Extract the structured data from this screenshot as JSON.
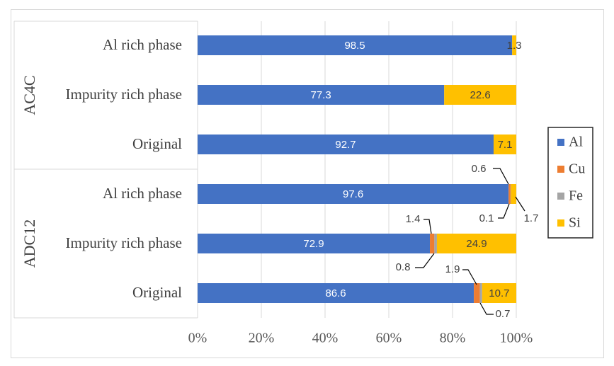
{
  "chart_data": {
    "type": "bar",
    "orientation": "horizontal",
    "stacked": "percent",
    "groups": [
      {
        "name": "AC4C",
        "categories": [
          "Al rich phase",
          "Impurity rich phase",
          "Original"
        ]
      },
      {
        "name": "ADC12",
        "categories": [
          "Al rich phase",
          "Impurity rich phase",
          "Original"
        ]
      }
    ],
    "categories": [
      "Al rich phase",
      "Impurity rich phase",
      "Original",
      "Al rich phase",
      "Impurity rich phase",
      "Original"
    ],
    "series": [
      {
        "name": "Al",
        "color": "#4472c4",
        "values": [
          98.5,
          77.3,
          92.7,
          97.6,
          72.9,
          86.6
        ]
      },
      {
        "name": "Cu",
        "color": "#ed7d31",
        "values": [
          0,
          0,
          0,
          0.6,
          1.4,
          1.9
        ]
      },
      {
        "name": "Fe",
        "color": "#a5a5a5",
        "values": [
          0,
          0,
          0,
          0.1,
          0.8,
          0.7
        ]
      },
      {
        "name": "Si",
        "color": "#ffc000",
        "values": [
          1.3,
          22.6,
          7.1,
          1.7,
          24.9,
          10.7
        ]
      }
    ],
    "data_labels": [
      {
        "row": 0,
        "series": "Al",
        "text": "98.5"
      },
      {
        "row": 0,
        "series": "Si",
        "text": "1.3"
      },
      {
        "row": 1,
        "series": "Al",
        "text": "77.3"
      },
      {
        "row": 1,
        "series": "Si",
        "text": "22.6"
      },
      {
        "row": 2,
        "series": "Al",
        "text": "92.7"
      },
      {
        "row": 2,
        "series": "Si",
        "text": "7.1"
      },
      {
        "row": 3,
        "series": "Al",
        "text": "97.6"
      },
      {
        "row": 3,
        "series": "Cu",
        "text": "0.6"
      },
      {
        "row": 3,
        "series": "Fe",
        "text": "0.1"
      },
      {
        "row": 3,
        "series": "Si",
        "text": "1.7"
      },
      {
        "row": 4,
        "series": "Al",
        "text": "72.9"
      },
      {
        "row": 4,
        "series": "Cu",
        "text": "1.4"
      },
      {
        "row": 4,
        "series": "Fe",
        "text": "0.8"
      },
      {
        "row": 4,
        "series": "Si",
        "text": "24.9"
      },
      {
        "row": 5,
        "series": "Al",
        "text": "86.6"
      },
      {
        "row": 5,
        "series": "Cu",
        "text": "1.9"
      },
      {
        "row": 5,
        "series": "Fe",
        "text": "0.7"
      },
      {
        "row": 5,
        "series": "Si",
        "text": "10.7"
      }
    ],
    "x_ticks": [
      "0%",
      "20%",
      "40%",
      "60%",
      "80%",
      "100%"
    ],
    "xlim": [
      0,
      100
    ],
    "title": "",
    "xlabel": "",
    "ylabel": "",
    "grid": "vertical",
    "legend": {
      "position": "right",
      "entries": [
        "Al",
        "Cu",
        "Fe",
        "Si"
      ]
    }
  }
}
